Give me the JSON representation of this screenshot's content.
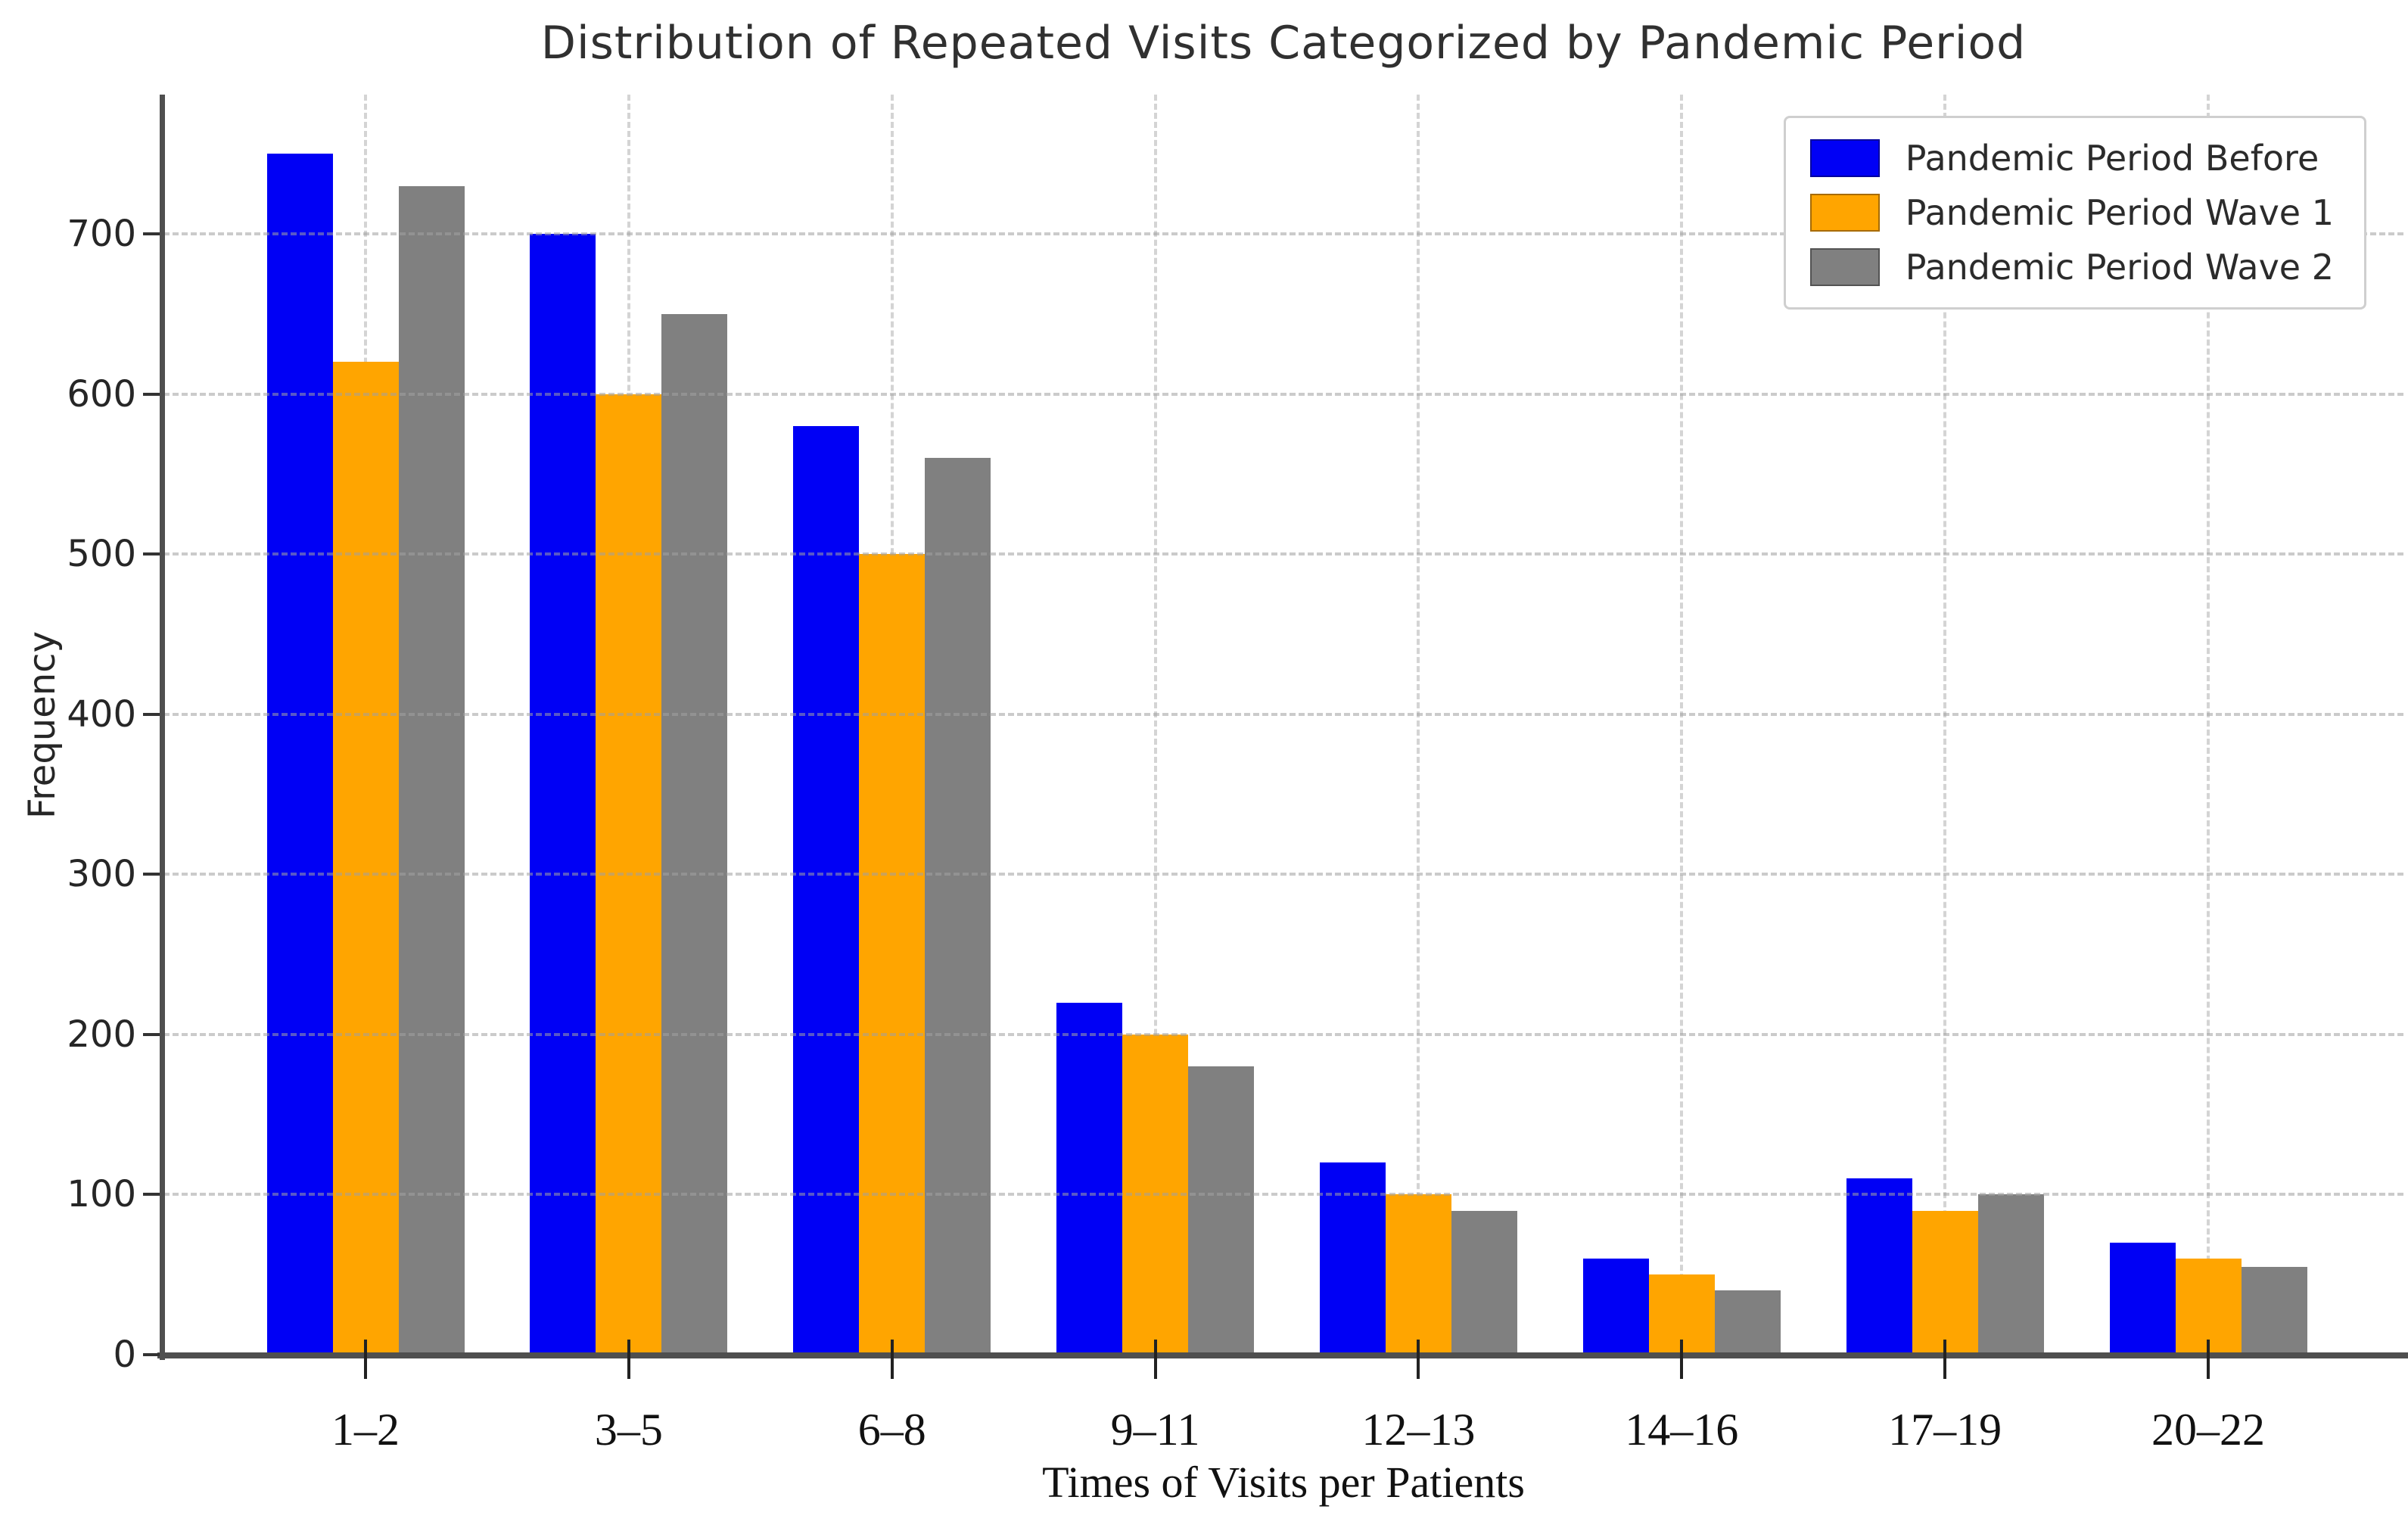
{
  "chart_data": {
    "type": "bar",
    "title": "Distribution of Repeated Visits Categorized by Pandemic Period",
    "xlabel": "Times of Visits per Patients",
    "ylabel": "Frequency",
    "categories": [
      "1–2",
      "3–5",
      "6–8",
      "9–11",
      "12–13",
      "14–16",
      "17–19",
      "20–22"
    ],
    "series": [
      {
        "name": "Pandemic Period Before",
        "color": "#0000f5",
        "values": [
          750,
          700,
          580,
          220,
          120,
          60,
          110,
          70
        ]
      },
      {
        "name": "Pandemic Period Wave 1",
        "color": "#ffa500",
        "values": [
          620,
          600,
          500,
          200,
          100,
          50,
          90,
          60
        ]
      },
      {
        "name": "Pandemic Period Wave 2",
        "color": "#808080",
        "values": [
          730,
          650,
          560,
          180,
          90,
          40,
          100,
          55
        ]
      }
    ],
    "yticks": [
      0,
      100,
      200,
      300,
      400,
      500,
      600,
      700
    ],
    "ylim": [
      0,
      787
    ],
    "grid": true,
    "grid_style": "dashed",
    "legend_position": "upper right",
    "background_color": "#ffffff",
    "spine_color": "#4f4f4f"
  }
}
